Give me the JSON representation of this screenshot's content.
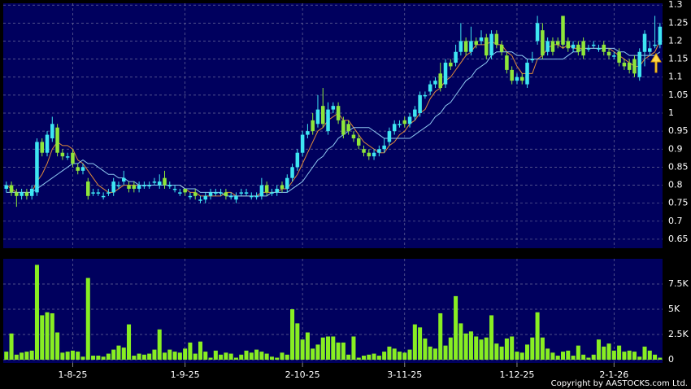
{
  "chart_data": [
    {
      "type": "candlestick",
      "open": [
        0.79,
        0.8,
        0.78,
        0.77,
        0.78,
        0.77,
        0.78,
        0.92,
        0.89,
        0.93,
        0.96,
        0.89,
        0.88,
        0.89,
        0.85,
        0.84,
        0.81,
        0.78,
        0.78,
        0.77,
        0.78,
        0.78,
        0.8,
        0.81,
        0.8,
        0.8,
        0.79,
        0.8,
        0.8,
        0.81,
        0.8,
        0.82,
        0.8,
        0.79,
        0.78,
        0.79,
        0.77,
        0.78,
        0.76,
        0.76,
        0.77,
        0.78,
        0.78,
        0.78,
        0.77,
        0.76,
        0.78,
        0.78,
        0.77,
        0.77,
        0.77,
        0.8,
        0.78,
        0.78,
        0.8,
        0.79,
        0.82,
        0.85,
        0.89,
        0.94,
        0.98,
        0.97,
        1.02,
        0.95,
        1.01,
        1.02,
        0.98,
        0.97,
        0.94,
        0.93,
        0.9,
        0.89,
        0.88,
        0.89,
        0.9,
        0.92,
        0.95,
        0.97,
        0.98,
        0.97,
        0.99,
        1.0,
        1.05,
        1.06,
        1.08,
        1.11,
        1.08,
        1.14,
        1.14,
        1.17,
        1.2,
        1.17,
        1.2,
        1.2,
        1.21,
        1.16,
        1.22,
        1.19,
        1.16,
        1.12,
        1.09,
        1.1,
        1.08,
        1.15,
        1.2,
        1.23,
        1.17,
        1.2,
        1.2,
        1.27,
        1.2,
        1.18,
        1.19,
        1.2,
        1.18,
        1.19,
        1.18,
        1.19,
        1.17,
        1.16,
        1.17,
        1.14,
        1.14,
        1.15,
        1.1,
        1.17,
        1.17,
        1.19,
        1.19
      ],
      "high": [
        0.81,
        0.81,
        0.79,
        0.79,
        0.79,
        0.8,
        0.93,
        0.93,
        0.95,
        0.99,
        0.97,
        0.9,
        0.89,
        0.9,
        0.86,
        0.86,
        0.82,
        0.79,
        0.79,
        0.78,
        0.79,
        0.82,
        0.81,
        0.84,
        0.81,
        0.81,
        0.81,
        0.81,
        0.81,
        0.82,
        0.83,
        0.84,
        0.81,
        0.8,
        0.79,
        0.79,
        0.78,
        0.79,
        0.77,
        0.78,
        0.79,
        0.79,
        0.79,
        0.79,
        0.78,
        0.78,
        0.79,
        0.79,
        0.78,
        0.78,
        0.82,
        0.81,
        0.79,
        0.8,
        0.81,
        0.83,
        0.86,
        0.9,
        0.95,
        0.97,
        1.0,
        1.05,
        1.07,
        1.03,
        1.03,
        1.03,
        0.99,
        0.98,
        0.95,
        0.94,
        0.91,
        0.9,
        0.9,
        0.91,
        0.93,
        0.96,
        0.98,
        0.98,
        0.99,
        1.0,
        1.02,
        1.06,
        1.06,
        1.09,
        1.1,
        1.14,
        1.15,
        1.15,
        1.19,
        1.25,
        1.21,
        1.24,
        1.21,
        1.23,
        1.22,
        1.23,
        1.23,
        1.2,
        1.17,
        1.13,
        1.11,
        1.11,
        1.15,
        1.17,
        1.27,
        1.25,
        1.21,
        1.21,
        1.21,
        1.27,
        1.21,
        1.2,
        1.2,
        1.21,
        1.19,
        1.2,
        1.19,
        1.2,
        1.18,
        1.17,
        1.18,
        1.15,
        1.15,
        1.16,
        1.18,
        1.23,
        1.2,
        1.27,
        1.25
      ],
      "low": [
        0.78,
        0.77,
        0.74,
        0.76,
        0.76,
        0.76,
        0.77,
        0.88,
        0.88,
        0.92,
        0.88,
        0.87,
        0.87,
        0.85,
        0.83,
        0.83,
        0.76,
        0.77,
        0.77,
        0.76,
        0.77,
        0.77,
        0.79,
        0.8,
        0.78,
        0.78,
        0.78,
        0.79,
        0.79,
        0.8,
        0.79,
        0.79,
        0.79,
        0.78,
        0.77,
        0.77,
        0.76,
        0.76,
        0.75,
        0.75,
        0.76,
        0.77,
        0.77,
        0.76,
        0.76,
        0.75,
        0.77,
        0.77,
        0.76,
        0.76,
        0.76,
        0.77,
        0.77,
        0.77,
        0.78,
        0.78,
        0.81,
        0.84,
        0.88,
        0.93,
        0.94,
        0.96,
        0.96,
        0.94,
        1.0,
        0.97,
        0.93,
        0.94,
        0.92,
        0.9,
        0.88,
        0.87,
        0.87,
        0.88,
        0.89,
        0.91,
        0.94,
        0.96,
        0.96,
        0.96,
        0.98,
        0.99,
        1.04,
        1.05,
        1.07,
        1.06,
        1.07,
        1.12,
        1.13,
        1.16,
        1.16,
        1.16,
        1.18,
        1.19,
        1.15,
        1.15,
        1.18,
        1.16,
        1.11,
        1.08,
        1.08,
        1.08,
        1.07,
        1.14,
        1.19,
        1.15,
        1.16,
        1.16,
        1.18,
        1.18,
        1.17,
        1.17,
        1.16,
        1.15,
        1.17,
        1.18,
        1.17,
        1.16,
        1.15,
        1.15,
        1.13,
        1.12,
        1.11,
        1.1,
        1.09,
        1.13,
        1.16,
        1.18,
        1.18
      ],
      "close": [
        0.8,
        0.78,
        0.77,
        0.78,
        0.77,
        0.79,
        0.92,
        0.89,
        0.94,
        0.97,
        0.89,
        0.88,
        0.88,
        0.86,
        0.84,
        0.85,
        0.77,
        0.78,
        0.78,
        0.77,
        0.78,
        0.81,
        0.8,
        0.82,
        0.79,
        0.79,
        0.8,
        0.8,
        0.8,
        0.81,
        0.81,
        0.8,
        0.8,
        0.79,
        0.78,
        0.78,
        0.77,
        0.77,
        0.76,
        0.77,
        0.78,
        0.78,
        0.78,
        0.77,
        0.77,
        0.77,
        0.78,
        0.78,
        0.77,
        0.77,
        0.8,
        0.78,
        0.78,
        0.79,
        0.79,
        0.82,
        0.85,
        0.89,
        0.94,
        0.95,
        0.95,
        1.01,
        0.97,
        1.01,
        1.02,
        0.98,
        0.94,
        0.95,
        0.93,
        0.91,
        0.89,
        0.88,
        0.89,
        0.9,
        0.91,
        0.95,
        0.97,
        0.97,
        0.97,
        0.99,
        1.01,
        1.05,
        1.05,
        1.08,
        1.09,
        1.07,
        1.14,
        1.13,
        1.17,
        1.2,
        1.17,
        1.2,
        1.19,
        1.21,
        1.16,
        1.22,
        1.19,
        1.17,
        1.12,
        1.09,
        1.1,
        1.09,
        1.14,
        1.15,
        1.25,
        1.16,
        1.2,
        1.17,
        1.19,
        1.19,
        1.18,
        1.19,
        1.17,
        1.16,
        1.18,
        1.19,
        1.18,
        1.17,
        1.16,
        1.16,
        1.14,
        1.13,
        1.12,
        1.11,
        1.17,
        1.22,
        1.18,
        1.19,
        1.24
      ],
      "up_color": "#3ee6f2",
      "down_color": "#8ee63a",
      "series": [
        {
          "color": "#e08a3a",
          "values": [
            0.8,
            0.79,
            0.78,
            0.78,
            0.78,
            0.78,
            0.81,
            0.83,
            0.86,
            0.9,
            0.92,
            0.91,
            0.91,
            0.9,
            0.87,
            0.86,
            0.84,
            0.82,
            0.8,
            0.79,
            0.78,
            0.78,
            0.79,
            0.8,
            0.8,
            0.8,
            0.8,
            0.8,
            0.8,
            0.8,
            0.8,
            0.8,
            0.8,
            0.8,
            0.8,
            0.79,
            0.78,
            0.78,
            0.77,
            0.77,
            0.77,
            0.77,
            0.77,
            0.78,
            0.78,
            0.77,
            0.77,
            0.77,
            0.77,
            0.77,
            0.78,
            0.78,
            0.78,
            0.78,
            0.79,
            0.79,
            0.81,
            0.83,
            0.86,
            0.89,
            0.92,
            0.95,
            0.96,
            0.98,
            0.99,
            1.0,
            0.98,
            0.98,
            0.96,
            0.94,
            0.92,
            0.91,
            0.9,
            0.89,
            0.89,
            0.91,
            0.92,
            0.94,
            0.95,
            0.97,
            0.98,
            1.0,
            1.01,
            1.04,
            1.06,
            1.07,
            1.09,
            1.1,
            1.12,
            1.14,
            1.16,
            1.17,
            1.19,
            1.19,
            1.19,
            1.2,
            1.19,
            1.19,
            1.17,
            1.16,
            1.13,
            1.11,
            1.11,
            1.11,
            1.15,
            1.16,
            1.18,
            1.19,
            1.19,
            1.18,
            1.19,
            1.18,
            1.18,
            1.18,
            1.18,
            1.18,
            1.18,
            1.18,
            1.18,
            1.17,
            1.16,
            1.15,
            1.14,
            1.13,
            1.13,
            1.15,
            1.16,
            1.17,
            1.2
          ]
        },
        {
          "color": "#8fc8f0",
          "values": [
            0.78,
            0.78,
            0.78,
            0.78,
            0.78,
            0.78,
            0.79,
            0.8,
            0.81,
            0.82,
            0.83,
            0.84,
            0.85,
            0.86,
            0.86,
            0.87,
            0.86,
            0.86,
            0.85,
            0.84,
            0.83,
            0.83,
            0.82,
            0.82,
            0.81,
            0.81,
            0.8,
            0.8,
            0.8,
            0.8,
            0.8,
            0.8,
            0.8,
            0.8,
            0.8,
            0.79,
            0.79,
            0.79,
            0.78,
            0.78,
            0.78,
            0.78,
            0.78,
            0.77,
            0.77,
            0.77,
            0.77,
            0.77,
            0.77,
            0.77,
            0.77,
            0.77,
            0.78,
            0.78,
            0.78,
            0.78,
            0.79,
            0.8,
            0.81,
            0.83,
            0.85,
            0.87,
            0.88,
            0.9,
            0.91,
            0.93,
            0.94,
            0.95,
            0.96,
            0.96,
            0.96,
            0.96,
            0.95,
            0.94,
            0.93,
            0.93,
            0.93,
            0.93,
            0.93,
            0.93,
            0.94,
            0.95,
            0.96,
            0.97,
            0.99,
            1.0,
            1.02,
            1.03,
            1.05,
            1.07,
            1.09,
            1.1,
            1.12,
            1.13,
            1.14,
            1.16,
            1.17,
            1.17,
            1.17,
            1.17,
            1.16,
            1.16,
            1.15,
            1.15,
            1.15,
            1.15,
            1.15,
            1.15,
            1.15,
            1.15,
            1.16,
            1.17,
            1.17,
            1.18,
            1.18,
            1.18,
            1.18,
            1.18,
            1.18,
            1.18,
            1.17,
            1.17,
            1.16,
            1.16,
            1.16,
            1.16,
            1.16,
            1.16,
            1.17
          ]
        }
      ],
      "xlim": [
        -0.6,
        128.5
      ],
      "ylim": [
        0.625,
        1.305
      ],
      "yticks": [
        1.3,
        1.25,
        1.2,
        1.15,
        1.1,
        1.05,
        1,
        0.95,
        0.9,
        0.85,
        0.8,
        0.75,
        0.7,
        0.65
      ],
      "grid": true
    },
    {
      "type": "bar",
      "values": [
        800,
        2600,
        500,
        700,
        800,
        900,
        9400,
        4400,
        4700,
        4600,
        2700,
        700,
        800,
        900,
        800,
        300,
        8100,
        400,
        400,
        300,
        600,
        1000,
        1400,
        1200,
        3500,
        400,
        600,
        500,
        600,
        1000,
        3000,
        700,
        1000,
        800,
        700,
        1100,
        1700,
        600,
        1800,
        800,
        200,
        900,
        500,
        700,
        600,
        200,
        500,
        900,
        700,
        1000,
        800,
        600,
        300,
        200,
        700,
        500,
        5000,
        3600,
        2000,
        2700,
        1100,
        1500,
        2200,
        2300,
        2300,
        1700,
        1700,
        500,
        2300,
        200,
        400,
        500,
        600,
        400,
        800,
        1300,
        1100,
        800,
        700,
        1000,
        3500,
        3200,
        2100,
        1300,
        1100,
        4600,
        1400,
        2200,
        6300,
        3600,
        2600,
        2800,
        2300,
        2000,
        2200,
        4400,
        1600,
        1300,
        2100,
        2300,
        800,
        700,
        1500,
        2200,
        4700,
        2200,
        1100,
        700,
        400,
        800,
        900,
        400,
        1400,
        500,
        200,
        500,
        2000,
        1300,
        1600,
        900,
        1400,
        800,
        900,
        800,
        300,
        1300,
        900,
        500,
        200
      ],
      "color": "#88ee22",
      "xlim": [
        -0.6,
        128.5
      ],
      "ylim": [
        0,
        10000
      ],
      "yticks": [
        0,
        {
          "value": 2500,
          "label": "2.5K"
        },
        {
          "value": 5000,
          "label": "5K"
        },
        {
          "value": 7500,
          "label": "7.5K"
        }
      ],
      "xticks": [
        {
          "value": 13,
          "label": "1-8-25"
        },
        {
          "value": 35,
          "label": "1-9-25"
        },
        {
          "value": 58,
          "label": "2-10-25"
        },
        {
          "value": 78,
          "label": "3-11-25"
        },
        {
          "value": 100,
          "label": "1-12-25"
        },
        {
          "value": 119,
          "label": "2-1-26"
        }
      ],
      "grid": true
    }
  ],
  "copyright": "Copyright by AASTOCKS.com Ltd."
}
